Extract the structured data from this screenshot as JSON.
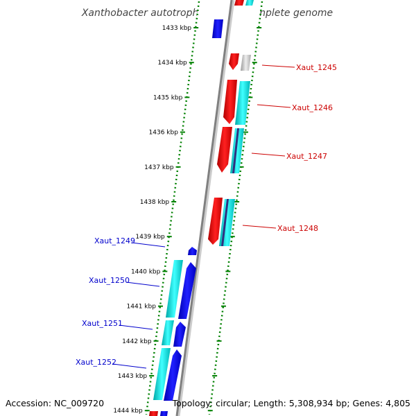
{
  "title": "Xanthobacter autotrophicus Py2, complete genome",
  "accession": "Accession: NC_009720",
  "topology": "Topology: circular; Length: 5,308,934 bp; Genes: 4,805",
  "colors": {
    "forward_gene": "#ff0000",
    "reverse_gene": "#0000ff",
    "forward_label": "#cc0000",
    "reverse_label": "#0000cc",
    "cds_cyan": "#00c8c8",
    "ruler_ticks": "#008000",
    "axis": "#808080"
  },
  "ruler": {
    "unit": "kbp",
    "labels": [
      "1433 kbp",
      "1434 kbp",
      "1435 kbp",
      "1436 kbp",
      "1437 kbp",
      "1438 kbp",
      "1439 kbp",
      "1440 kbp",
      "1441 kbp",
      "1442 kbp",
      "1443 kbp",
      "1444 kbp"
    ]
  },
  "genes": [
    {
      "name": "Xaut_1245",
      "strand": "forward"
    },
    {
      "name": "Xaut_1246",
      "strand": "forward"
    },
    {
      "name": "Xaut_1247",
      "strand": "forward"
    },
    {
      "name": "Xaut_1248",
      "strand": "forward"
    },
    {
      "name": "Xaut_1249",
      "strand": "reverse"
    },
    {
      "name": "Xaut_1250",
      "strand": "reverse"
    },
    {
      "name": "Xaut_1251",
      "strand": "reverse"
    },
    {
      "name": "Xaut_1252",
      "strand": "reverse"
    }
  ]
}
